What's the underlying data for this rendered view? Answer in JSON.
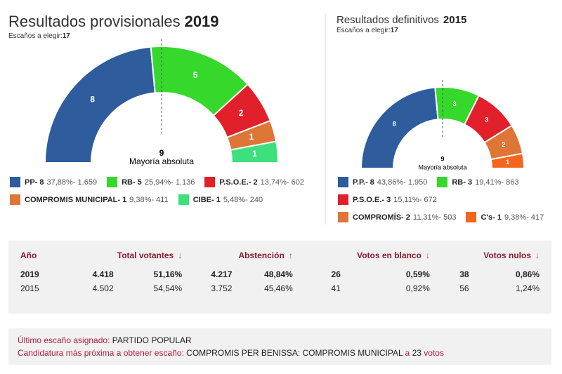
{
  "chart_data": [
    {
      "type": "semicircle",
      "title": "Resultados provisionales",
      "title_year": "2019",
      "subtitle": "Escaños a elegir:",
      "total": 17,
      "majority": 9,
      "majority_label": "Mayoría absoluta",
      "categories": [
        "PP- 8",
        "RB- 5",
        "P.S.O.E.- 2",
        "COMPROMIS MUNICIPAL- 1",
        "CIBE- 1"
      ],
      "values": [
        8,
        5,
        2,
        1,
        1
      ],
      "details": [
        "37,88%- 1.659",
        "25,94%- 1.136",
        "13,74%- 602",
        "9,38%- 411",
        "5,48%- 240"
      ],
      "colors": [
        "#2e5c9c",
        "#36d92b",
        "#e2202b",
        "#de7637",
        "#3ce07d"
      ]
    },
    {
      "type": "semicircle",
      "title": "Resultados definitivos",
      "title_year": "2015",
      "subtitle": "Escaños a elegir:",
      "total": 17,
      "majority": 9,
      "majority_label": "Mayoría absoluta",
      "categories": [
        "P.P.- 8",
        "RB- 3",
        "P.S.O.E.- 3",
        "COMPROMÍS- 2",
        "C's- 1"
      ],
      "values": [
        8,
        3,
        3,
        2,
        1
      ],
      "details": [
        "43,86%- 1.950",
        "19,41%- 863",
        "15,11%- 672",
        "11,31%- 503",
        "9,38%- 417"
      ],
      "colors": [
        "#2e5c9c",
        "#36d92b",
        "#e2202b",
        "#de7637",
        "#f4661e"
      ]
    }
  ],
  "table": {
    "headers": [
      {
        "label": "Año",
        "arrow": ""
      },
      {
        "label": "Total votantes",
        "arrow": "↓"
      },
      {
        "label": "Abstención",
        "arrow": "↑"
      },
      {
        "label": "Votos en blanco",
        "arrow": "↓"
      },
      {
        "label": "Votos nulos",
        "arrow": "↓"
      }
    ],
    "rows": [
      [
        "2019",
        "4.418",
        "51,16%",
        "4.217",
        "48,84%",
        "26",
        "0,59%",
        "38",
        "0,86%"
      ],
      [
        "2015",
        "4.502",
        "54,54%",
        "3.752",
        "45,46%",
        "41",
        "0,92%",
        "56",
        "1,24%"
      ]
    ]
  },
  "footer": {
    "last_seat_label": "Último escaño asignado:",
    "last_seat": "PARTIDO POPULAR",
    "next_label": "Candidatura más próxima a obtener escaño:",
    "next_party": "COMPROMIS PER BENISSA: COMPROMIS MUNICIPAL",
    "next_a": "a",
    "next_votes": "23",
    "next_votos": "votos"
  }
}
